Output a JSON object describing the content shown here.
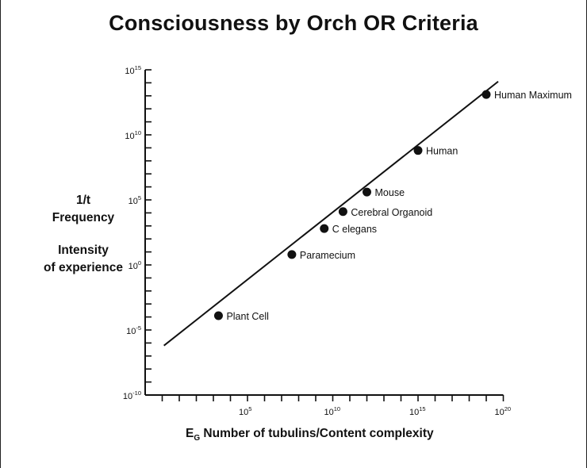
{
  "chart_data": {
    "type": "scatter",
    "title": "Consciousness by Orch OR Criteria",
    "ylabel_lines": [
      "1/t",
      "Frequency",
      "Intensity",
      "of experience"
    ],
    "xlabel": {
      "symbol": "E",
      "subscript": "G",
      "text": " Number of tubulins/Content complexity"
    },
    "x_scale": "log10",
    "y_scale": "log10",
    "xlim": [
      -1,
      20
    ],
    "ylim": [
      -10,
      15
    ],
    "x_ticks": [
      {
        "value": 5,
        "base": "10",
        "exp": "5"
      },
      {
        "value": 10,
        "base": "10",
        "exp": "10"
      },
      {
        "value": 15,
        "base": "10",
        "exp": "15"
      },
      {
        "value": 20,
        "base": "10",
        "exp": "20"
      }
    ],
    "y_ticks": [
      {
        "value": -10,
        "base": "10",
        "exp": "-10"
      },
      {
        "value": -5,
        "base": "10",
        "exp": "-5"
      },
      {
        "value": 0,
        "base": "10",
        "exp": "0"
      },
      {
        "value": 5,
        "base": "10",
        "exp": "5"
      },
      {
        "value": 10,
        "base": "10",
        "exp": "10"
      },
      {
        "value": 15,
        "base": "10",
        "exp": "15"
      }
    ],
    "trend_line": {
      "x": [
        0.1,
        19.7
      ],
      "y": [
        -6.2,
        14.1
      ]
    },
    "points": [
      {
        "label": "Plant Cell",
        "log_x": 3.3,
        "log_y": -3.9
      },
      {
        "label": "Paramecium",
        "log_x": 7.6,
        "log_y": 0.8
      },
      {
        "label": "C elegans",
        "log_x": 9.5,
        "log_y": 2.8
      },
      {
        "label": "Cerebral Organoid",
        "log_x": 10.6,
        "log_y": 4.1
      },
      {
        "label": "Mouse",
        "log_x": 12.0,
        "log_y": 5.6
      },
      {
        "label": "Human",
        "log_x": 15.0,
        "log_y": 8.8
      },
      {
        "label": "Human Maximum",
        "log_x": 19.0,
        "log_y": 13.1
      }
    ]
  }
}
